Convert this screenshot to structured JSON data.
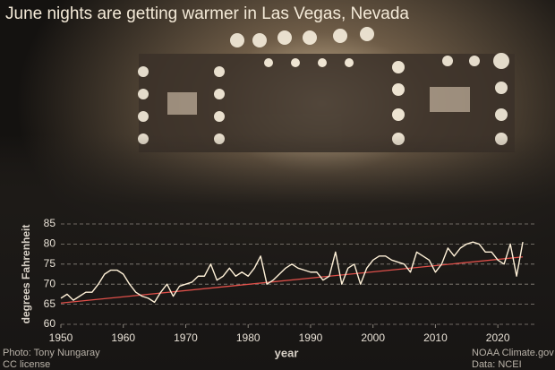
{
  "chart_data": {
    "type": "line",
    "title": "June nights are getting warmer in Las Vegas, Nevada",
    "y_label": "degrees Fahrenheit",
    "x_label": "year",
    "credits": [
      "Photo: Tony Nungaray",
      "CC license"
    ],
    "source": [
      "NOAA Climate.gov",
      "Data: NCEI"
    ],
    "x": [
      1950,
      1951,
      1952,
      1953,
      1954,
      1955,
      1956,
      1957,
      1958,
      1959,
      1960,
      1961,
      1962,
      1963,
      1964,
      1965,
      1966,
      1967,
      1968,
      1969,
      1970,
      1971,
      1972,
      1973,
      1974,
      1975,
      1976,
      1977,
      1978,
      1979,
      1980,
      1981,
      1982,
      1983,
      1984,
      1985,
      1986,
      1987,
      1988,
      1989,
      1990,
      1991,
      1992,
      1993,
      1994,
      1995,
      1996,
      1997,
      1998,
      1999,
      2000,
      2001,
      2002,
      2003,
      2004,
      2005,
      2006,
      2007,
      2008,
      2009,
      2010,
      2011,
      2012,
      2013,
      2014,
      2015,
      2016,
      2017,
      2018,
      2019,
      2020,
      2021,
      2022,
      2023,
      2024
    ],
    "series": [
      {
        "color": "#fff1d8",
        "values": [
          66.5,
          67.5,
          66,
          67,
          68,
          68,
          70,
          72.5,
          73.5,
          73.5,
          72.5,
          70,
          68,
          67,
          66.5,
          65.5,
          68,
          70,
          67,
          69.5,
          70,
          70.5,
          72,
          72,
          75,
          71,
          72,
          74,
          72,
          73,
          72,
          74,
          77,
          70,
          71,
          72.5,
          74,
          75,
          74,
          73.5,
          73,
          73,
          71,
          72,
          78,
          70,
          74,
          75,
          70,
          74,
          76,
          77,
          77,
          76,
          75.5,
          75,
          73,
          78,
          77,
          76,
          73,
          75,
          79,
          77,
          79,
          80,
          80.5,
          80,
          78,
          78,
          76,
          75,
          80,
          72,
          80.5
        ]
      }
    ],
    "trend": {
      "color": "#e0504a",
      "x": [
        1950,
        2024
      ],
      "values": [
        65.3,
        76.8
      ]
    },
    "xlim": [
      1950,
      2026
    ],
    "ylim": [
      60,
      85
    ],
    "xticks": [
      1950,
      1960,
      1970,
      1980,
      1990,
      2000,
      2010,
      2020
    ],
    "yticks": [
      60,
      65,
      70,
      75,
      80,
      85
    ],
    "grid": true
  }
}
